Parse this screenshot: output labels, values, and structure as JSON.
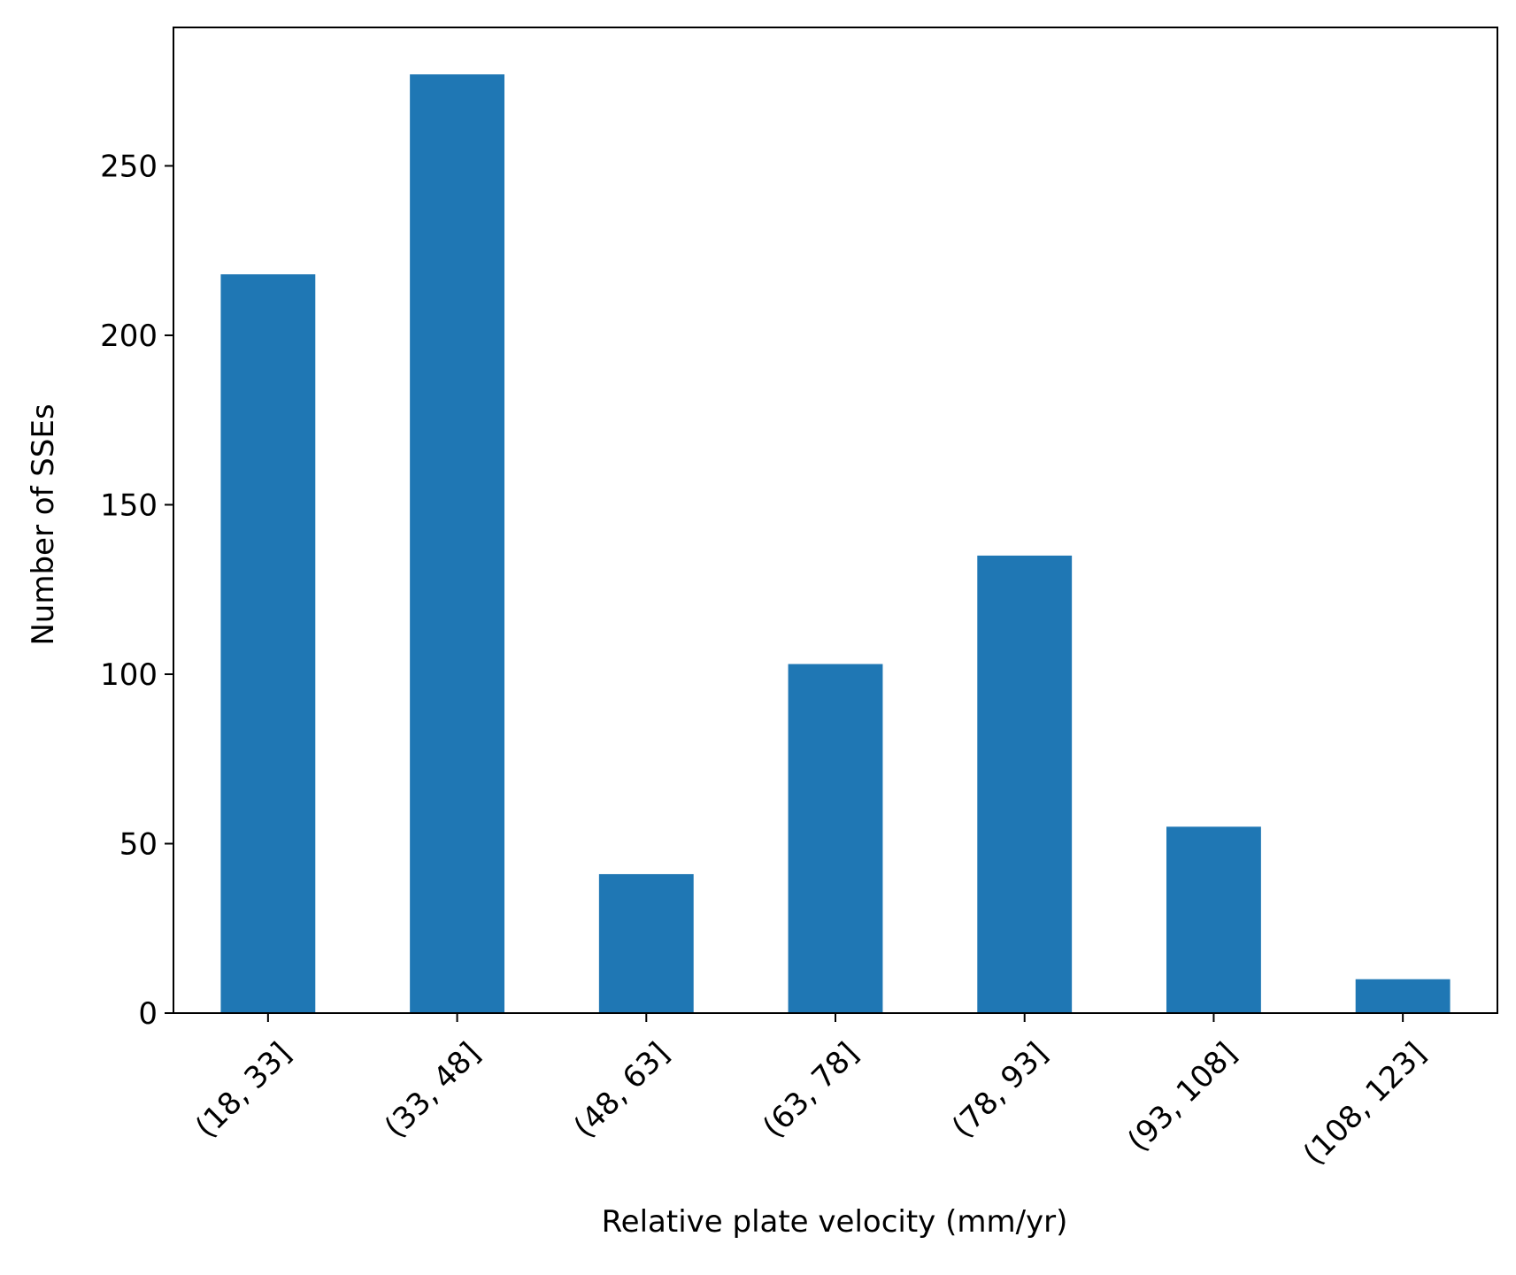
{
  "chart_data": {
    "type": "bar",
    "title": "",
    "xlabel": "Relative plate velocity (mm/yr)",
    "ylabel": "Number of SSEs",
    "categories": [
      "(18, 33]",
      "(33, 48]",
      "(48, 63]",
      "(63, 78]",
      "(78, 93]",
      "(93, 108]",
      "(108, 123]"
    ],
    "values": [
      218,
      277,
      41,
      103,
      135,
      55,
      10
    ],
    "ylim": [
      0,
      290.85
    ],
    "yticks": [
      0,
      50,
      100,
      150,
      200,
      250
    ],
    "grid": false,
    "legend": "none",
    "bar_color": "#1f77b4"
  }
}
